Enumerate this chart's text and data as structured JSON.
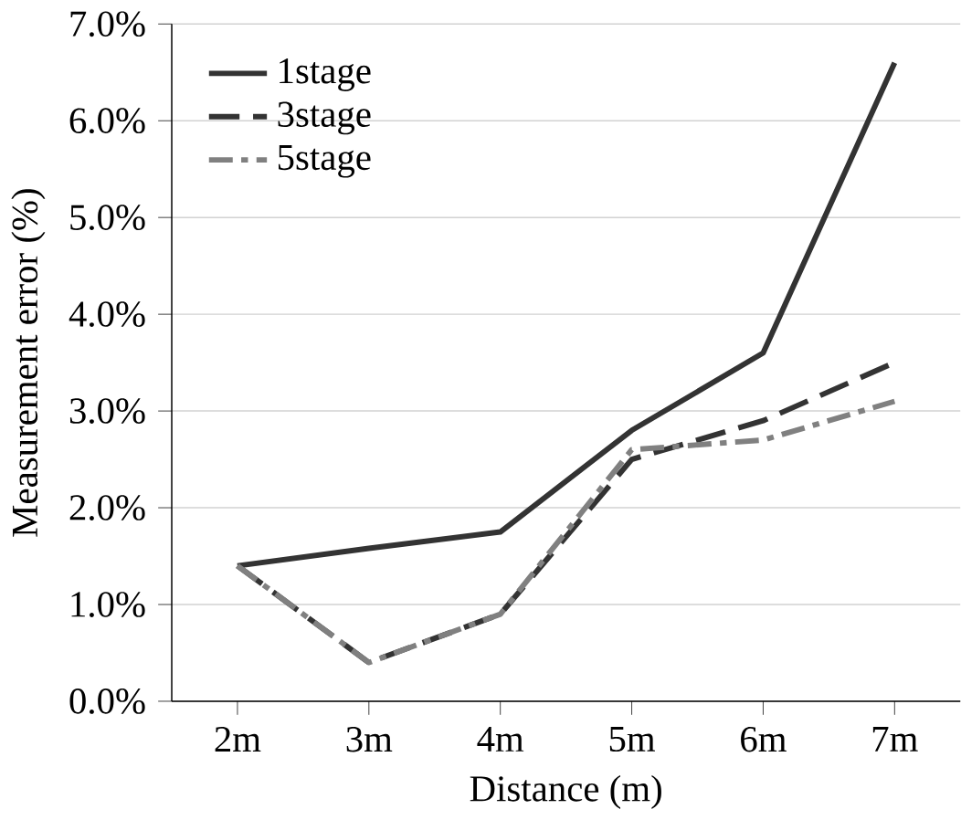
{
  "chart_data": {
    "type": "line",
    "xlabel": "Distance (m)",
    "ylabel": "Measurement error (%)",
    "categories": [
      "2m",
      "3m",
      "4m",
      "5m",
      "6m",
      "7m"
    ],
    "series": [
      {
        "name": "1stage",
        "color": "#333333",
        "line_style": "solid",
        "values": [
          1.4,
          1.58,
          1.75,
          2.8,
          3.6,
          6.6
        ]
      },
      {
        "name": "3stage",
        "color": "#333333",
        "line_style": "dashed",
        "values": [
          1.4,
          0.4,
          0.9,
          2.5,
          2.9,
          3.5
        ]
      },
      {
        "name": "5stage",
        "color": "#808080",
        "line_style": "dashdot",
        "values": [
          1.4,
          0.4,
          0.9,
          2.6,
          2.7,
          3.1
        ]
      }
    ],
    "ylim": [
      0,
      7
    ],
    "yticks": [
      {
        "value": 0,
        "label": "0.0%"
      },
      {
        "value": 1,
        "label": "1.0%"
      },
      {
        "value": 2,
        "label": "2.0%"
      },
      {
        "value": 3,
        "label": "3.0%"
      },
      {
        "value": 4,
        "label": "4.0%"
      },
      {
        "value": 5,
        "label": "5.0%"
      },
      {
        "value": 6,
        "label": "6.0%"
      },
      {
        "value": 7,
        "label": "7.0%"
      }
    ],
    "grid": "y",
    "legend": "top left",
    "marker": "none"
  }
}
